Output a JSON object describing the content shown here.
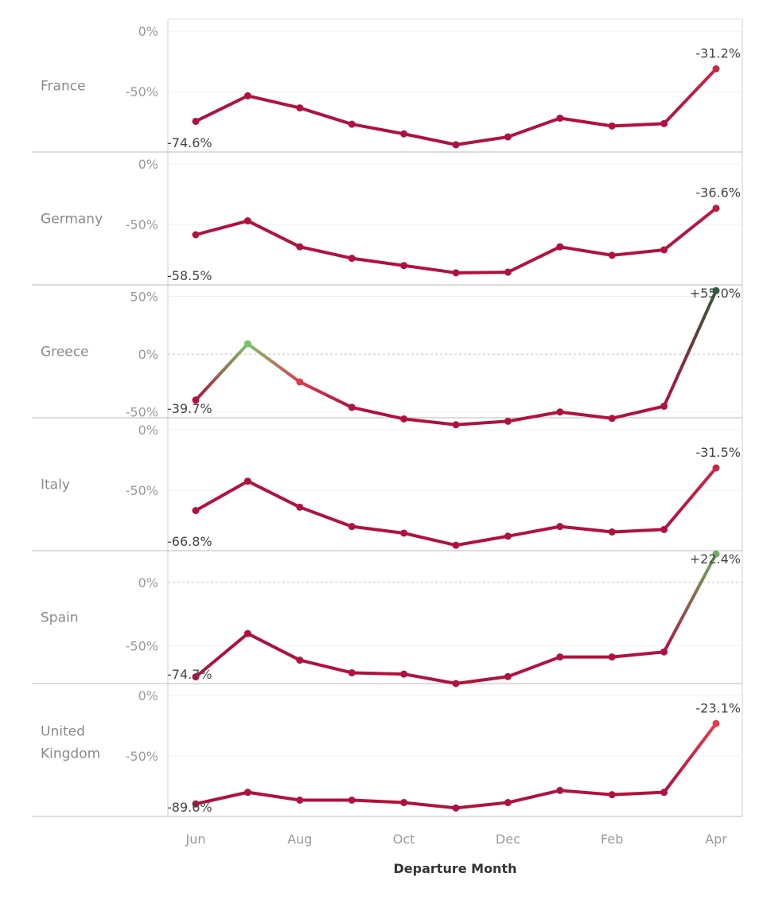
{
  "chart_data": {
    "type": "line",
    "xlabel": "Departure Month",
    "x": [
      "Jun",
      "Jul",
      "Aug",
      "Sep",
      "Oct",
      "Nov",
      "Dec",
      "Jan",
      "Feb",
      "Mar",
      "Apr"
    ],
    "x_tick_labels": [
      "Jun",
      "Aug",
      "Oct",
      "Dec",
      "Feb",
      "Apr"
    ],
    "grid": true,
    "colors": {
      "negative": "#b0123f",
      "mid": "#e8474f",
      "positive": "#7ac36a",
      "dark_positive": "#2f5e3a"
    },
    "panels": [
      {
        "name": "France",
        "values": [
          -74.6,
          -53.5,
          -63.5,
          -77,
          -85,
          -94,
          -87.5,
          -72,
          -78.5,
          -76.5,
          -31.2
        ],
        "ylim": [
          -100,
          10
        ],
        "yticks": [
          {
            "v": 0,
            "label": "0%"
          },
          {
            "v": -50,
            "label": "-50%"
          }
        ],
        "start_label": "-74.6%",
        "end_label": "-31.2%"
      },
      {
        "name": "Germany",
        "values": [
          -58.5,
          -47,
          -68.5,
          -78,
          -84,
          -90,
          -89.5,
          -68.5,
          -75.5,
          -71,
          -36.6
        ],
        "ylim": [
          -100,
          10
        ],
        "yticks": [
          {
            "v": 0,
            "label": "0%"
          },
          {
            "v": -50,
            "label": "-50%"
          }
        ],
        "start_label": "-58.5%",
        "end_label": "-36.6%"
      },
      {
        "name": "Greece",
        "values": [
          -39.7,
          9,
          -24,
          -46,
          -56,
          -61,
          -58,
          -50,
          -55.5,
          -45,
          55.0
        ],
        "ylim": [
          -55,
          60
        ],
        "yticks": [
          {
            "v": 50,
            "label": "50%"
          },
          {
            "v": 0,
            "label": "0%"
          },
          {
            "v": -50,
            "label": "-50%"
          }
        ],
        "zero_line": true,
        "start_label": "-39.7%",
        "end_label": "+55.0%"
      },
      {
        "name": "Italy",
        "values": [
          -66.8,
          -42.5,
          -64,
          -80,
          -85.5,
          -95.5,
          -88,
          -80,
          -84.5,
          -82.5,
          -31.5
        ],
        "ylim": [
          -100,
          10
        ],
        "yticks": [
          {
            "v": 0,
            "label": "0%"
          },
          {
            "v": -50,
            "label": "-50%"
          }
        ],
        "start_label": "-66.8%",
        "end_label": "-31.5%"
      },
      {
        "name": "Spain",
        "values": [
          -74.7,
          -40.5,
          -61.5,
          -71.5,
          -72.5,
          -80,
          -74.5,
          -59,
          -59,
          -55,
          22.4
        ],
        "ylim": [
          -80,
          25
        ],
        "yticks": [
          {
            "v": 0,
            "label": "0%"
          },
          {
            "v": -50,
            "label": "-50%"
          }
        ],
        "zero_line": true,
        "start_label": "-74.7%",
        "end_label": "+22.4%"
      },
      {
        "name": "United Kingdom",
        "values": [
          -89.6,
          -80,
          -86.5,
          -86.5,
          -88.5,
          -93,
          -88.5,
          -78.5,
          -82,
          -80,
          -23.1
        ],
        "ylim": [
          -100,
          10
        ],
        "yticks": [
          {
            "v": 0,
            "label": "0%"
          },
          {
            "v": -50,
            "label": "-50%"
          }
        ],
        "start_label": "-89.6%",
        "end_label": "-23.1%"
      }
    ]
  }
}
